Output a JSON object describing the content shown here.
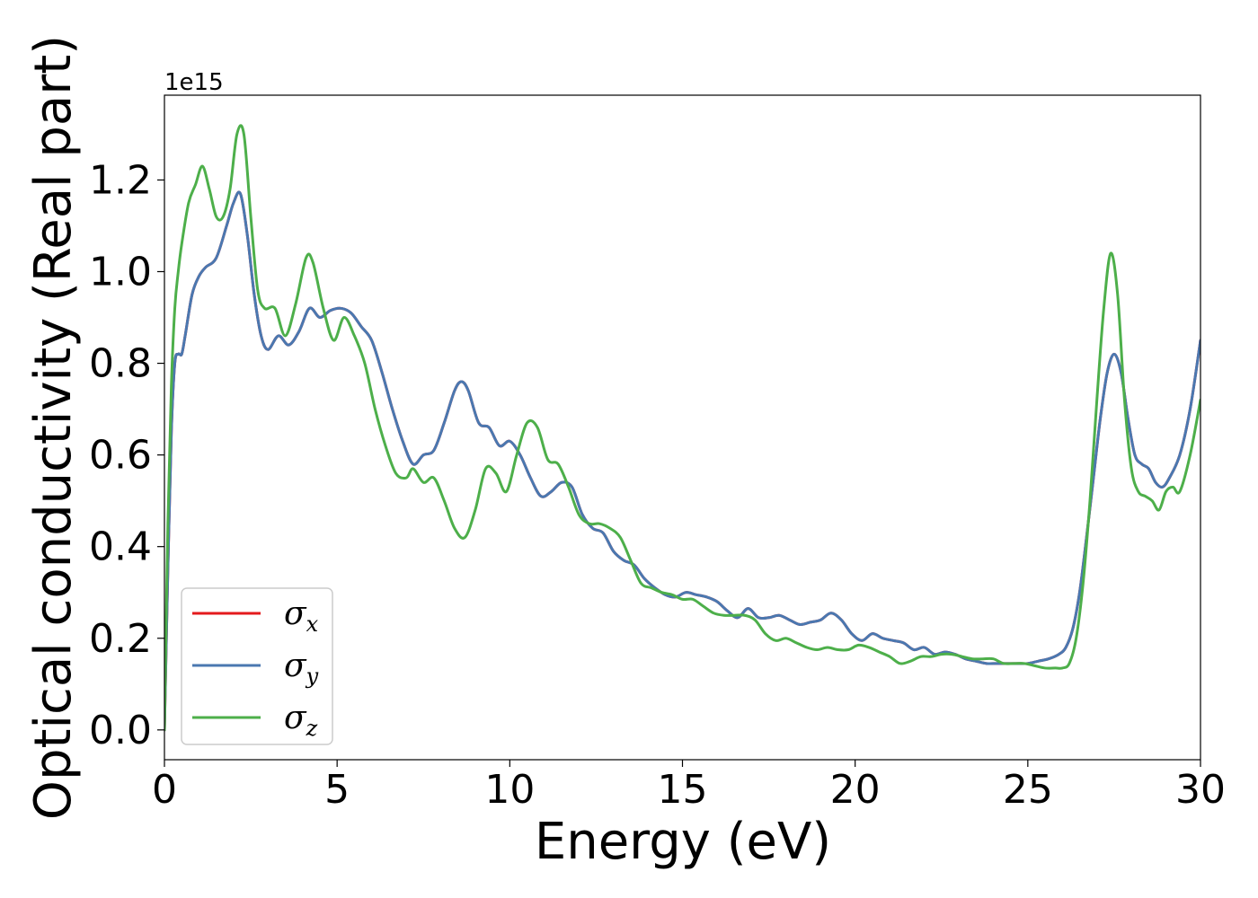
{
  "chart_data": {
    "type": "line",
    "xlabel": "Energy (eV)",
    "ylabel": "Optical conductivity (Real part)",
    "y_offset_label": "1e15",
    "xlim": [
      0,
      30
    ],
    "ylim": [
      -0.065,
      1.385
    ],
    "xticks": [
      0,
      5,
      10,
      15,
      20,
      25,
      30
    ],
    "xtick_labels": [
      "0",
      "5",
      "10",
      "15",
      "20",
      "25",
      "30"
    ],
    "yticks": [
      0.0,
      0.2,
      0.4,
      0.6,
      0.8,
      1.0,
      1.2
    ],
    "ytick_labels": [
      "0.0",
      "0.2",
      "0.4",
      "0.6",
      "0.8",
      "1.0",
      "1.2"
    ],
    "grid": false,
    "legend_position": "lower-left",
    "series": [
      {
        "name": "σx",
        "symbol": "σ",
        "subscript": "x",
        "color": "#e41a1c",
        "x": [
          0,
          0.1,
          0.2,
          0.3,
          0.4,
          0.5,
          0.6,
          0.8,
          1.0,
          1.2,
          1.5,
          1.8,
          2.0,
          2.2,
          2.4,
          2.6,
          2.8,
          3.0,
          3.3,
          3.6,
          3.9,
          4.2,
          4.5,
          4.8,
          5.1,
          5.4,
          5.7,
          6.0,
          6.3,
          6.6,
          6.9,
          7.2,
          7.5,
          7.8,
          8.1,
          8.4,
          8.6,
          8.8,
          9.1,
          9.4,
          9.7,
          10.0,
          10.3,
          10.6,
          10.9,
          11.2,
          11.5,
          11.8,
          12.1,
          12.4,
          12.7,
          13.0,
          13.3,
          13.6,
          13.9,
          14.2,
          14.5,
          14.8,
          15.1,
          15.4,
          15.7,
          16.0,
          16.3,
          16.6,
          16.9,
          17.2,
          17.5,
          17.8,
          18.1,
          18.4,
          18.7,
          19.0,
          19.3,
          19.6,
          19.9,
          20.2,
          20.5,
          20.8,
          21.1,
          21.4,
          21.7,
          22.0,
          22.3,
          22.6,
          22.9,
          23.2,
          23.5,
          23.8,
          24.1,
          24.4,
          24.7,
          25.0,
          25.3,
          25.6,
          25.9,
          26.1,
          26.3,
          26.5,
          26.7,
          26.9,
          27.1,
          27.3,
          27.5,
          27.7,
          27.9,
          28.1,
          28.3,
          28.5,
          28.7,
          28.9,
          29.1,
          29.4,
          29.7,
          30.0
        ],
        "values": [
          0.0,
          0.35,
          0.65,
          0.8,
          0.82,
          0.82,
          0.86,
          0.95,
          0.99,
          1.01,
          1.03,
          1.1,
          1.15,
          1.17,
          1.08,
          0.95,
          0.86,
          0.83,
          0.86,
          0.84,
          0.87,
          0.92,
          0.9,
          0.915,
          0.92,
          0.91,
          0.88,
          0.85,
          0.78,
          0.7,
          0.63,
          0.58,
          0.6,
          0.61,
          0.67,
          0.74,
          0.76,
          0.74,
          0.67,
          0.66,
          0.62,
          0.63,
          0.6,
          0.55,
          0.51,
          0.52,
          0.54,
          0.53,
          0.47,
          0.44,
          0.43,
          0.39,
          0.37,
          0.36,
          0.33,
          0.31,
          0.295,
          0.29,
          0.3,
          0.295,
          0.29,
          0.28,
          0.26,
          0.245,
          0.265,
          0.245,
          0.245,
          0.25,
          0.24,
          0.23,
          0.235,
          0.24,
          0.255,
          0.24,
          0.21,
          0.195,
          0.21,
          0.2,
          0.195,
          0.19,
          0.175,
          0.18,
          0.165,
          0.17,
          0.165,
          0.155,
          0.15,
          0.145,
          0.145,
          0.145,
          0.145,
          0.145,
          0.15,
          0.155,
          0.165,
          0.18,
          0.22,
          0.3,
          0.42,
          0.55,
          0.68,
          0.78,
          0.82,
          0.78,
          0.68,
          0.6,
          0.58,
          0.57,
          0.54,
          0.53,
          0.55,
          0.6,
          0.7,
          0.85
        ]
      },
      {
        "name": "σy",
        "symbol": "σ",
        "subscript": "y",
        "color": "#4a78b0",
        "x": [
          0,
          0.1,
          0.2,
          0.3,
          0.4,
          0.5,
          0.6,
          0.8,
          1.0,
          1.2,
          1.5,
          1.8,
          2.0,
          2.2,
          2.4,
          2.6,
          2.8,
          3.0,
          3.3,
          3.6,
          3.9,
          4.2,
          4.5,
          4.8,
          5.1,
          5.4,
          5.7,
          6.0,
          6.3,
          6.6,
          6.9,
          7.2,
          7.5,
          7.8,
          8.1,
          8.4,
          8.6,
          8.8,
          9.1,
          9.4,
          9.7,
          10.0,
          10.3,
          10.6,
          10.9,
          11.2,
          11.5,
          11.8,
          12.1,
          12.4,
          12.7,
          13.0,
          13.3,
          13.6,
          13.9,
          14.2,
          14.5,
          14.8,
          15.1,
          15.4,
          15.7,
          16.0,
          16.3,
          16.6,
          16.9,
          17.2,
          17.5,
          17.8,
          18.1,
          18.4,
          18.7,
          19.0,
          19.3,
          19.6,
          19.9,
          20.2,
          20.5,
          20.8,
          21.1,
          21.4,
          21.7,
          22.0,
          22.3,
          22.6,
          22.9,
          23.2,
          23.5,
          23.8,
          24.1,
          24.4,
          24.7,
          25.0,
          25.3,
          25.6,
          25.9,
          26.1,
          26.3,
          26.5,
          26.7,
          26.9,
          27.1,
          27.3,
          27.5,
          27.7,
          27.9,
          28.1,
          28.3,
          28.5,
          28.7,
          28.9,
          29.1,
          29.4,
          29.7,
          30.0
        ],
        "values": [
          0.0,
          0.35,
          0.65,
          0.8,
          0.82,
          0.82,
          0.86,
          0.95,
          0.99,
          1.01,
          1.03,
          1.1,
          1.15,
          1.17,
          1.08,
          0.95,
          0.86,
          0.83,
          0.86,
          0.84,
          0.87,
          0.92,
          0.9,
          0.915,
          0.92,
          0.91,
          0.88,
          0.85,
          0.78,
          0.7,
          0.63,
          0.58,
          0.6,
          0.61,
          0.67,
          0.74,
          0.76,
          0.74,
          0.67,
          0.66,
          0.62,
          0.63,
          0.6,
          0.55,
          0.51,
          0.52,
          0.54,
          0.53,
          0.47,
          0.44,
          0.43,
          0.39,
          0.37,
          0.36,
          0.33,
          0.31,
          0.295,
          0.29,
          0.3,
          0.295,
          0.29,
          0.28,
          0.26,
          0.245,
          0.265,
          0.245,
          0.245,
          0.25,
          0.24,
          0.23,
          0.235,
          0.24,
          0.255,
          0.24,
          0.21,
          0.195,
          0.21,
          0.2,
          0.195,
          0.19,
          0.175,
          0.18,
          0.165,
          0.17,
          0.165,
          0.155,
          0.15,
          0.145,
          0.145,
          0.145,
          0.145,
          0.145,
          0.15,
          0.155,
          0.165,
          0.18,
          0.22,
          0.3,
          0.42,
          0.55,
          0.68,
          0.78,
          0.82,
          0.78,
          0.68,
          0.6,
          0.58,
          0.57,
          0.54,
          0.53,
          0.55,
          0.6,
          0.7,
          0.85
        ]
      },
      {
        "name": "σz",
        "symbol": "σ",
        "subscript": "z",
        "color": "#4daf4a",
        "x": [
          0,
          0.1,
          0.2,
          0.3,
          0.4,
          0.5,
          0.7,
          0.9,
          1.1,
          1.3,
          1.5,
          1.7,
          1.9,
          2.1,
          2.3,
          2.5,
          2.7,
          2.9,
          3.2,
          3.5,
          3.8,
          4.1,
          4.3,
          4.6,
          4.9,
          5.2,
          5.5,
          5.8,
          6.1,
          6.4,
          6.7,
          7.0,
          7.2,
          7.5,
          7.8,
          8.1,
          8.4,
          8.7,
          9.0,
          9.3,
          9.6,
          9.9,
          10.2,
          10.5,
          10.8,
          11.1,
          11.4,
          11.7,
          12.0,
          12.3,
          12.6,
          12.9,
          13.2,
          13.5,
          13.8,
          14.1,
          14.4,
          14.7,
          15.0,
          15.3,
          15.6,
          15.9,
          16.2,
          16.5,
          16.8,
          17.1,
          17.4,
          17.7,
          18.0,
          18.3,
          18.6,
          18.9,
          19.2,
          19.5,
          19.8,
          20.1,
          20.4,
          20.7,
          21.0,
          21.3,
          21.6,
          21.9,
          22.2,
          22.5,
          22.8,
          23.1,
          23.4,
          23.7,
          24.0,
          24.3,
          24.6,
          24.9,
          25.2,
          25.5,
          25.8,
          26.0,
          26.2,
          26.4,
          26.6,
          26.8,
          27.0,
          27.2,
          27.4,
          27.6,
          27.8,
          28.0,
          28.2,
          28.4,
          28.6,
          28.8,
          29.0,
          29.2,
          29.4,
          29.7,
          30.0
        ],
        "values": [
          0.0,
          0.45,
          0.75,
          0.92,
          1.0,
          1.06,
          1.15,
          1.19,
          1.23,
          1.18,
          1.12,
          1.12,
          1.18,
          1.3,
          1.3,
          1.12,
          0.96,
          0.92,
          0.92,
          0.86,
          0.93,
          1.03,
          1.02,
          0.92,
          0.85,
          0.9,
          0.86,
          0.8,
          0.7,
          0.62,
          0.56,
          0.55,
          0.57,
          0.54,
          0.55,
          0.5,
          0.44,
          0.42,
          0.48,
          0.57,
          0.56,
          0.52,
          0.6,
          0.67,
          0.66,
          0.59,
          0.58,
          0.53,
          0.47,
          0.45,
          0.45,
          0.44,
          0.42,
          0.37,
          0.32,
          0.31,
          0.3,
          0.295,
          0.285,
          0.285,
          0.27,
          0.255,
          0.25,
          0.25,
          0.25,
          0.24,
          0.21,
          0.195,
          0.2,
          0.19,
          0.18,
          0.175,
          0.18,
          0.175,
          0.175,
          0.185,
          0.18,
          0.17,
          0.16,
          0.145,
          0.15,
          0.16,
          0.16,
          0.165,
          0.165,
          0.16,
          0.155,
          0.155,
          0.155,
          0.145,
          0.145,
          0.145,
          0.14,
          0.135,
          0.135,
          0.135,
          0.145,
          0.2,
          0.32,
          0.5,
          0.72,
          0.92,
          1.04,
          0.95,
          0.72,
          0.57,
          0.52,
          0.51,
          0.5,
          0.48,
          0.52,
          0.53,
          0.52,
          0.6,
          0.72
        ]
      }
    ]
  }
}
